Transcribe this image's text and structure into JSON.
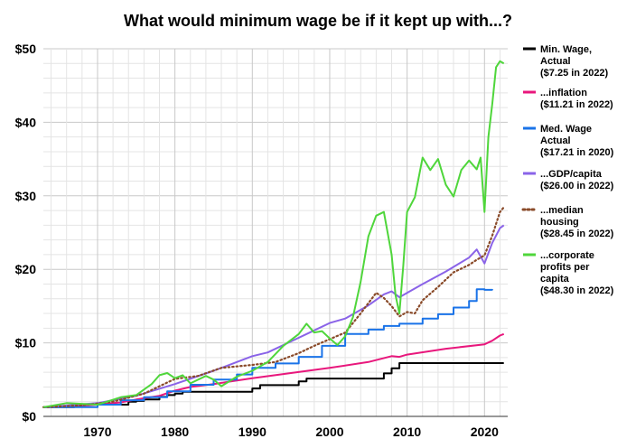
{
  "chart_data": {
    "type": "line",
    "title": "What would minimum wage be if it kept up with...?",
    "xlabel": "",
    "ylabel": "",
    "xlim": [
      1963,
      2023
    ],
    "ylim": [
      0,
      50
    ],
    "x_ticks": [
      1970,
      1980,
      1990,
      2000,
      2010,
      2020
    ],
    "y_ticks": [
      {
        "value": 0,
        "label": "$0"
      },
      {
        "value": 10,
        "label": "$10"
      },
      {
        "value": 20,
        "label": "$20"
      },
      {
        "value": 30,
        "label": "$30"
      },
      {
        "value": 40,
        "label": "$40"
      },
      {
        "value": 50,
        "label": "$50"
      }
    ],
    "grid": true,
    "legend_position": "right",
    "series": [
      {
        "name": "Min. Wage, Actual ($7.25 in 2022)",
        "legend_lines": [
          "Min. Wage,",
          "Actual",
          "($7.25 in 2022)"
        ],
        "color": "#000000",
        "style": "step",
        "points": [
          [
            1963,
            1.25
          ],
          [
            1967,
            1.4
          ],
          [
            1968,
            1.6
          ],
          [
            1974,
            2.0
          ],
          [
            1975,
            2.1
          ],
          [
            1976,
            2.3
          ],
          [
            1978,
            2.65
          ],
          [
            1979,
            2.9
          ],
          [
            1980,
            3.1
          ],
          [
            1981,
            3.35
          ],
          [
            1990,
            3.8
          ],
          [
            1991,
            4.25
          ],
          [
            1996,
            4.75
          ],
          [
            1997,
            5.15
          ],
          [
            2007,
            5.85
          ],
          [
            2008,
            6.55
          ],
          [
            2009,
            7.25
          ],
          [
            2022.5,
            7.25
          ]
        ]
      },
      {
        "name": "...inflation ($11.21 in 2022)",
        "legend_lines": [
          "...inflation",
          "($11.21 in 2022)"
        ],
        "color": "#e8177c",
        "style": "solid",
        "points": [
          [
            1963,
            1.25
          ],
          [
            1966,
            1.35
          ],
          [
            1970,
            1.6
          ],
          [
            1973,
            1.9
          ],
          [
            1975,
            2.3
          ],
          [
            1978,
            2.8
          ],
          [
            1980,
            3.5
          ],
          [
            1982,
            4.0
          ],
          [
            1985,
            4.4
          ],
          [
            1990,
            5.2
          ],
          [
            1995,
            5.9
          ],
          [
            2000,
            6.6
          ],
          [
            2005,
            7.4
          ],
          [
            2008,
            8.2
          ],
          [
            2009,
            8.1
          ],
          [
            2010,
            8.4
          ],
          [
            2015,
            9.2
          ],
          [
            2020,
            9.8
          ],
          [
            2021,
            10.3
          ],
          [
            2022,
            11.0
          ],
          [
            2022.5,
            11.21
          ]
        ]
      },
      {
        "name": "Med. Wage Actual ($17.21 in 2020)",
        "legend_lines": [
          "Med. Wage",
          "Actual",
          "($17.21 in 2020)"
        ],
        "color": "#1a73e8",
        "style": "step",
        "points": [
          [
            1963,
            1.25
          ],
          [
            1970,
            1.6
          ],
          [
            1973,
            2.2
          ],
          [
            1976,
            2.6
          ],
          [
            1979,
            3.4
          ],
          [
            1982,
            4.3
          ],
          [
            1985,
            5.0
          ],
          [
            1988,
            5.7
          ],
          [
            1990,
            6.6
          ],
          [
            1993,
            7.2
          ],
          [
            1996,
            8.1
          ],
          [
            1999,
            9.6
          ],
          [
            2002,
            11.2
          ],
          [
            2005,
            11.8
          ],
          [
            2007,
            12.3
          ],
          [
            2009,
            12.6
          ],
          [
            2012,
            13.3
          ],
          [
            2014,
            13.9
          ],
          [
            2016,
            14.8
          ],
          [
            2018,
            15.7
          ],
          [
            2019,
            17.3
          ],
          [
            2020,
            17.21
          ],
          [
            2021,
            17.15
          ]
        ]
      },
      {
        "name": "...GDP/capita ($26.00 in 2022)",
        "legend_lines": [
          "...GDP/capita",
          "($26.00 in 2022)"
        ],
        "color": "#8a63e8",
        "style": "solid",
        "points": [
          [
            1963,
            1.25
          ],
          [
            1965,
            1.4
          ],
          [
            1970,
            1.8
          ],
          [
            1975,
            2.8
          ],
          [
            1980,
            4.4
          ],
          [
            1985,
            6.2
          ],
          [
            1988,
            7.4
          ],
          [
            1990,
            8.2
          ],
          [
            1992,
            8.7
          ],
          [
            1995,
            10.2
          ],
          [
            1998,
            11.7
          ],
          [
            2000,
            12.7
          ],
          [
            2002,
            13.3
          ],
          [
            2005,
            15.1
          ],
          [
            2007,
            16.6
          ],
          [
            2008,
            17.0
          ],
          [
            2009,
            16.2
          ],
          [
            2010,
            16.8
          ],
          [
            2012,
            18.0
          ],
          [
            2015,
            19.7
          ],
          [
            2018,
            21.6
          ],
          [
            2019,
            22.7
          ],
          [
            2020,
            20.8
          ],
          [
            2021,
            23.6
          ],
          [
            2022,
            25.6
          ],
          [
            2022.5,
            26.0
          ]
        ]
      },
      {
        "name": "...median housing ($28.45 in 2022)",
        "legend_lines": [
          "...median",
          "housing",
          "($28.45 in 2022)"
        ],
        "color": "#8a4b2a",
        "style": "dotted",
        "points": [
          [
            1963,
            1.25
          ],
          [
            1968,
            1.5
          ],
          [
            1972,
            2.0
          ],
          [
            1976,
            3.1
          ],
          [
            1980,
            5.1
          ],
          [
            1983,
            5.5
          ],
          [
            1986,
            6.6
          ],
          [
            1990,
            7.0
          ],
          [
            1993,
            7.4
          ],
          [
            1996,
            8.6
          ],
          [
            1998,
            9.6
          ],
          [
            2000,
            10.5
          ],
          [
            2002,
            11.4
          ],
          [
            2004,
            14.0
          ],
          [
            2006,
            16.8
          ],
          [
            2007,
            16.1
          ],
          [
            2008,
            15.0
          ],
          [
            2009,
            13.6
          ],
          [
            2010,
            14.2
          ],
          [
            2011,
            14.0
          ],
          [
            2012,
            15.8
          ],
          [
            2014,
            17.6
          ],
          [
            2016,
            19.6
          ],
          [
            2018,
            20.6
          ],
          [
            2019,
            21.3
          ],
          [
            2020,
            21.9
          ],
          [
            2021,
            24.6
          ],
          [
            2022,
            27.8
          ],
          [
            2022.5,
            28.45
          ]
        ]
      },
      {
        "name": "...corporate profits per capita ($48.30 in 2022)",
        "legend_lines": [
          "...corporate",
          "profits per",
          "capita",
          "($48.30 in 2022)"
        ],
        "color": "#4fd63b",
        "style": "solid",
        "points": [
          [
            1963,
            1.25
          ],
          [
            1966,
            1.8
          ],
          [
            1970,
            1.6
          ],
          [
            1973,
            2.6
          ],
          [
            1975,
            2.9
          ],
          [
            1977,
            4.4
          ],
          [
            1978,
            5.6
          ],
          [
            1979,
            5.9
          ],
          [
            1980,
            5.2
          ],
          [
            1981,
            5.6
          ],
          [
            1982,
            4.5
          ],
          [
            1984,
            5.5
          ],
          [
            1985,
            5.0
          ],
          [
            1986,
            4.1
          ],
          [
            1988,
            5.4
          ],
          [
            1990,
            6.2
          ],
          [
            1992,
            7.4
          ],
          [
            1994,
            9.6
          ],
          [
            1996,
            11.2
          ],
          [
            1997,
            12.6
          ],
          [
            1998,
            11.4
          ],
          [
            1999,
            11.6
          ],
          [
            2000,
            10.6
          ],
          [
            2001,
            9.7
          ],
          [
            2002,
            10.9
          ],
          [
            2003,
            13.5
          ],
          [
            2004,
            18.3
          ],
          [
            2005,
            24.5
          ],
          [
            2006,
            27.3
          ],
          [
            2007,
            27.8
          ],
          [
            2008,
            22.0
          ],
          [
            2008.5,
            16.5
          ],
          [
            2009,
            14.0
          ],
          [
            2009.5,
            20.5
          ],
          [
            2010,
            27.8
          ],
          [
            2011,
            29.8
          ],
          [
            2012,
            35.2
          ],
          [
            2013,
            33.5
          ],
          [
            2014,
            35.0
          ],
          [
            2015,
            31.5
          ],
          [
            2016,
            29.9
          ],
          [
            2017,
            33.5
          ],
          [
            2018,
            34.8
          ],
          [
            2019,
            33.6
          ],
          [
            2019.5,
            35.2
          ],
          [
            2020,
            27.8
          ],
          [
            2020.5,
            38.0
          ],
          [
            2021,
            42.5
          ],
          [
            2021.5,
            47.5
          ],
          [
            2022,
            48.3
          ],
          [
            2022.5,
            48.0
          ]
        ]
      }
    ]
  }
}
